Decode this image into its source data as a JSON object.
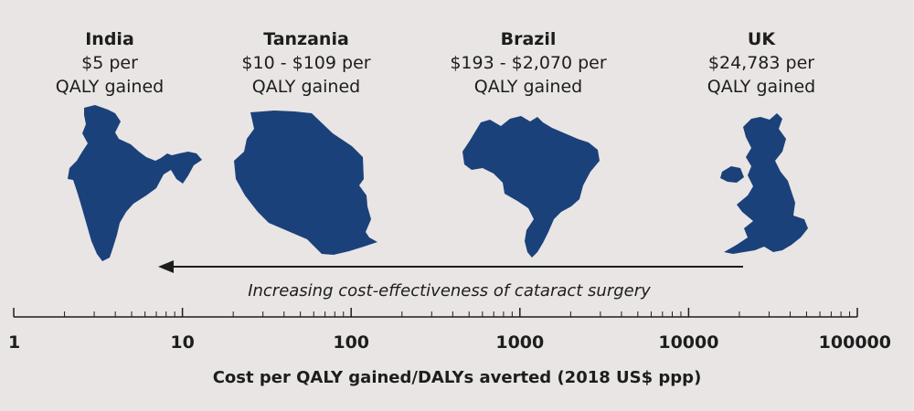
{
  "colors": {
    "background": "#e9e5e4",
    "map_fill": "#1b417a",
    "text": "#1d1d1d"
  },
  "countries": [
    {
      "name": "India",
      "cost": "$5 per",
      "unit": "QALY gained",
      "icon": "india-map-icon"
    },
    {
      "name": "Tanzania",
      "cost": "$10 - $109 per",
      "unit": "QALY gained",
      "icon": "tanzania-map-icon"
    },
    {
      "name": "Brazil",
      "cost": "$193 - $2,070 per",
      "unit": "QALY gained",
      "icon": "brazil-map-icon"
    },
    {
      "name": "UK",
      "cost": "$24,783 per",
      "unit": "QALY gained",
      "icon": "uk-map-icon"
    }
  ],
  "arrow": {
    "direction": "right-to-left",
    "caption": "Increasing cost-effectiveness of cataract surgery"
  },
  "chart_data": {
    "type": "scatter",
    "x_scale": "log",
    "xlim": [
      1,
      100000
    ],
    "xlabel": "Cost per QALY gained/DALYs averted (2018 US$ ppp)",
    "tick_values": [
      1,
      10,
      100,
      1000,
      10000,
      100000
    ],
    "tick_labels": [
      "1",
      "10",
      "100",
      "1000",
      "10000",
      "100000"
    ],
    "points": [
      {
        "label": "India",
        "x": 5
      },
      {
        "label": "Tanzania",
        "x_range": [
          10,
          109
        ]
      },
      {
        "label": "Brazil",
        "x_range": [
          193,
          2070
        ]
      },
      {
        "label": "UK",
        "x": 24783
      }
    ]
  }
}
